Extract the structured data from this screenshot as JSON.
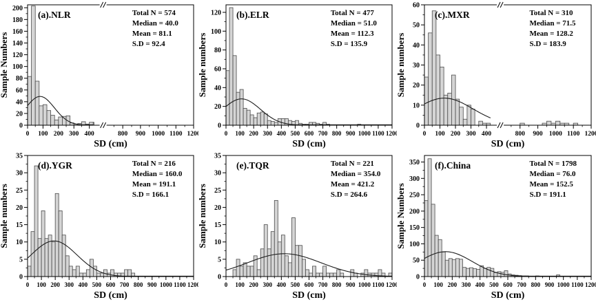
{
  "figure": {
    "description": "Six-panel histogram figure of sample numbers versus SD (cm) for five regions and all of China, each with a fitted normal curve and summary statistics."
  },
  "colors": {
    "bar_fill": "#d5d5d5",
    "bar_stroke": "#4a4a4a",
    "curve": "#1c1c1c",
    "axis": "#000000",
    "text": "#000000",
    "background": "#ffffff"
  },
  "chart_data": [
    {
      "id": "a",
      "type": "bar",
      "label": "(a).NLR",
      "stats": [
        "Total N = 574",
        "Median = 40.0",
        "Mean = 81.1",
        "S.D = 92.4"
      ],
      "ylabel": "Sample Numbers",
      "xlabel": "SD (cm)",
      "y_axis": {
        "max": 205,
        "major": 20,
        "minor": 10
      },
      "x_axis": {
        "max": 1200,
        "major": 100,
        "minor": 50,
        "tick_labels": [
          0,
          100,
          200,
          300,
          400,
          800,
          900,
          1000,
          1100,
          1200
        ],
        "break": {
          "seg1_max": 430,
          "seg1_frac": 0.4,
          "seg2_min": 750,
          "seg2_frac": 0.52,
          "mark_frac": 0.455
        }
      },
      "bin_width": 25,
      "bins": [
        83,
        203,
        75,
        33,
        35,
        25,
        17,
        9,
        14,
        15,
        16,
        4,
        2,
        3,
        6,
        2,
        5,
        5,
        3,
        0,
        0,
        0,
        0,
        0,
        0,
        0,
        0,
        0,
        0,
        0,
        0,
        0,
        0,
        0,
        0,
        0,
        0,
        0,
        0,
        0,
        0,
        0,
        0,
        0,
        0,
        0,
        0,
        0
      ],
      "curve": {
        "mu": 81.1,
        "sigma": 92.4,
        "peak": 49
      }
    },
    {
      "id": "b",
      "type": "bar",
      "label": "(b).ELR",
      "stats": [
        "Total N = 477",
        "Median = 51.0",
        "Mean = 112.3",
        "S.D = 135.9"
      ],
      "ylabel": "Sample numbers",
      "xlabel": "SD (cm)",
      "y_axis": {
        "max": 128,
        "major": 20,
        "minor": 10
      },
      "x_axis": {
        "max": 1200,
        "major": 100,
        "minor": 50,
        "tick_labels": [
          0,
          100,
          200,
          300,
          400,
          500,
          600,
          700,
          800,
          900,
          1000,
          1100,
          1200
        ],
        "break": null
      },
      "bin_width": 25,
      "bins": [
        58,
        125,
        74,
        35,
        38,
        18,
        16,
        11,
        8,
        13,
        14,
        12,
        5,
        4,
        3,
        7,
        7,
        7,
        5,
        4,
        5,
        2,
        1,
        1,
        3,
        3,
        2,
        1,
        3,
        1,
        0,
        0,
        0,
        0,
        0,
        0,
        0,
        0,
        1,
        0,
        0,
        0,
        0,
        0,
        0,
        0,
        0,
        0
      ],
      "curve": {
        "mu": 112.3,
        "sigma": 135.9,
        "peak": 28
      }
    },
    {
      "id": "c",
      "type": "bar",
      "label": "(c).MXR",
      "stats": [
        "Total N = 310",
        "Median = 71.5",
        "Mean = 128.2",
        "S.D = 183.9"
      ],
      "ylabel": "Sample numbers",
      "xlabel": "SD (cm)",
      "y_axis": {
        "max": 60,
        "major": 10,
        "minor": 5
      },
      "x_axis": {
        "max": 1200,
        "major": 100,
        "minor": 50,
        "tick_labels": [
          0,
          100,
          200,
          300,
          400,
          800,
          900,
          1000,
          1100,
          1200
        ],
        "break": {
          "seg1_max": 430,
          "seg1_frac": 0.4,
          "seg2_min": 750,
          "seg2_frac": 0.52,
          "mark_frac": 0.455
        }
      },
      "bin_width": 25,
      "bins": [
        24,
        46,
        57,
        35,
        29,
        15,
        16,
        25,
        13,
        9,
        3,
        10,
        8,
        0,
        2,
        1,
        1,
        0,
        0,
        0,
        0,
        0,
        0,
        0,
        0,
        0,
        0,
        0,
        0,
        0,
        0,
        0,
        1,
        0,
        0,
        0,
        0,
        1,
        2,
        1,
        2,
        1,
        1,
        0,
        1,
        0,
        0,
        0
      ],
      "curve": {
        "mu": 128.2,
        "sigma": 183.9,
        "peak": 13.5
      }
    },
    {
      "id": "d",
      "type": "bar",
      "label": "(d).YGR",
      "stats": [
        "Total N = 216",
        "Median = 160.0",
        "Mean = 191.1",
        "S.D = 166.1"
      ],
      "ylabel": "Sample numbers",
      "xlabel": "SD (cm)",
      "y_axis": {
        "max": 35,
        "major": 5,
        "minor": 2.5
      },
      "x_axis": {
        "max": 1200,
        "major": 100,
        "minor": 50,
        "tick_labels": [
          0,
          100,
          200,
          300,
          400,
          500,
          600,
          700,
          800,
          900,
          1000,
          1100,
          1200
        ],
        "break": null
      },
      "bin_width": 25,
      "bins": [
        3,
        13,
        32,
        11,
        19,
        11,
        12,
        10,
        24,
        19,
        12,
        6,
        3,
        2,
        3,
        1,
        1,
        2,
        5,
        3,
        1,
        1,
        2,
        1,
        2,
        1,
        1,
        1,
        2,
        2,
        1,
        0,
        0,
        0,
        0,
        0,
        0,
        0,
        0,
        0,
        0,
        0,
        0,
        0,
        0,
        0,
        0,
        0
      ],
      "curve": {
        "mu": 191.1,
        "sigma": 166.1,
        "peak": 10.3
      }
    },
    {
      "id": "e",
      "type": "bar",
      "label": "(e).TQR",
      "stats": [
        "Total N = 221",
        "Median = 354.0",
        "Mean = 421.2",
        "S.D = 264.6"
      ],
      "ylabel": "Sample numbers",
      "xlabel": "SD (cm)",
      "y_axis": {
        "max": 35,
        "major": 5,
        "minor": 2.5
      },
      "x_axis": {
        "max": 1200,
        "major": 100,
        "minor": 50,
        "tick_labels": [
          0,
          100,
          200,
          300,
          400,
          500,
          600,
          700,
          800,
          900,
          1000,
          1100,
          1200
        ],
        "break": null
      },
      "bin_width": 25,
      "bins": [
        0,
        0,
        2,
        5,
        3,
        4,
        3,
        3,
        6,
        2,
        8,
        15,
        8,
        13,
        22,
        10,
        12,
        6,
        4,
        17,
        9,
        9,
        5,
        2,
        1,
        3,
        1,
        1,
        3,
        1,
        1,
        1,
        2,
        1,
        0,
        0,
        2,
        1,
        0,
        1,
        2,
        1,
        1,
        1,
        2,
        1,
        0,
        1
      ],
      "curve": {
        "mu": 421.2,
        "sigma": 264.6,
        "peak": 6.6
      }
    },
    {
      "id": "f",
      "type": "bar",
      "label": "(f).China",
      "stats": [
        "Total N = 1798",
        "Median = 76.0",
        "Mean = 152.5",
        "S.D = 191.1"
      ],
      "ylabel": "Sample Numbers",
      "xlabel": "SD (cm)",
      "y_axis": {
        "max": 370,
        "major": 50,
        "minor": 25
      },
      "x_axis": {
        "max": 1200,
        "major": 100,
        "minor": 50,
        "tick_labels": [
          0,
          100,
          200,
          300,
          400,
          500,
          600,
          700,
          800,
          900,
          1000,
          1100,
          1200
        ],
        "break": null
      },
      "bin_width": 25,
      "bins": [
        232,
        360,
        221,
        126,
        113,
        75,
        50,
        55,
        52,
        55,
        53,
        28,
        25,
        27,
        24,
        22,
        33,
        25,
        28,
        25,
        12,
        15,
        13,
        18,
        8,
        5,
        4,
        3,
        2,
        2,
        1,
        1,
        2,
        1,
        1,
        1,
        1,
        0,
        5,
        0,
        1,
        0,
        0,
        0,
        0,
        0,
        0,
        0
      ],
      "curve": {
        "mu": 152.5,
        "sigma": 191.1,
        "peak": 76
      }
    }
  ]
}
